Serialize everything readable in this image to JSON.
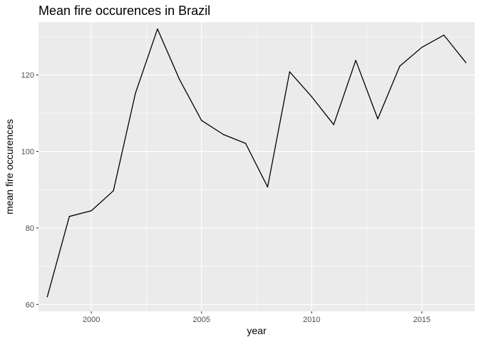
{
  "chart_data": {
    "type": "line",
    "title": "Mean fire occurences in Brazil",
    "xlabel": "year",
    "ylabel": "mean fire occurences",
    "xlim": [
      1997.6,
      2017.4
    ],
    "ylim": [
      58.2,
      133.8
    ],
    "x_ticks": [
      2000,
      2005,
      2010,
      2015
    ],
    "x_tick_labels": [
      "2000",
      "2005",
      "2010",
      "2015"
    ],
    "y_ticks": [
      60,
      80,
      100,
      120
    ],
    "y_tick_labels": [
      "60",
      "80",
      "100",
      "120"
    ],
    "grid": true,
    "legend": "none",
    "colors": {
      "panel": "#ebebeb",
      "grid": "#ffffff",
      "line": "#000000"
    },
    "series": [
      {
        "x": [
          1998,
          1999,
          2000,
          2001,
          2002,
          2003,
          2004,
          2005,
          2006,
          2007,
          2008,
          2009,
          2010,
          2011,
          2012,
          2013,
          2014,
          2015,
          2016,
          2017
        ],
        "values": [
          62.0,
          83.0,
          84.5,
          89.7,
          115.2,
          132.0,
          118.8,
          108.1,
          104.4,
          102.1,
          90.7,
          120.8,
          114.3,
          107.0,
          123.8,
          108.5,
          122.3,
          127.2,
          130.4,
          123.2
        ]
      }
    ]
  }
}
